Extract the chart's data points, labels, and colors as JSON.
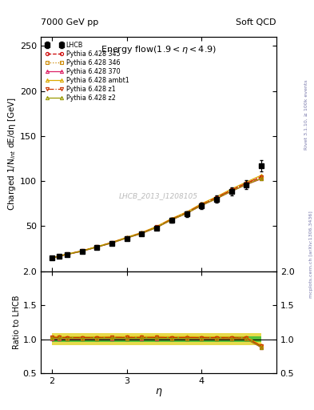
{
  "title_main": "Energy flow",
  "title_sub": "(1.9< η <4.9)",
  "header_left": "7000 GeV pp",
  "header_right": "Soft QCD",
  "ylabel_main": "Charged 1/N$_{int}$ dE/dη [GeV]",
  "ylabel_ratio": "Ratio to LHCB",
  "xlabel": "η",
  "watermark": "LHCB_2013_I1208105",
  "rivet_text": "Rivet 3.1.10, ≥ 100k events",
  "arxiv_text": "mcplots.cern.ch [arXiv:1306.3436]",
  "eta": [
    2.0,
    2.1,
    2.2,
    2.4,
    2.6,
    2.8,
    3.0,
    3.2,
    3.4,
    3.6,
    3.8,
    4.0,
    4.2,
    4.4,
    4.6,
    4.8
  ],
  "lhcb_y": [
    14.5,
    16.5,
    18.5,
    22.0,
    26.5,
    31.0,
    36.5,
    41.5,
    48.0,
    56.5,
    63.5,
    72.5,
    80.0,
    88.5,
    96.0,
    117.0
  ],
  "lhcb_yerr": [
    0.8,
    0.9,
    1.0,
    1.1,
    1.3,
    1.5,
    1.8,
    2.0,
    2.5,
    2.8,
    3.2,
    3.6,
    4.0,
    4.5,
    5.0,
    6.5
  ],
  "p345_y": [
    14.8,
    16.8,
    18.8,
    22.4,
    27.0,
    31.6,
    37.2,
    42.3,
    49.0,
    57.6,
    64.8,
    73.9,
    81.5,
    90.0,
    97.5,
    104.5
  ],
  "p346_y": [
    14.7,
    16.7,
    18.7,
    22.3,
    26.9,
    31.5,
    37.0,
    42.1,
    48.7,
    57.2,
    64.3,
    73.3,
    80.8,
    89.2,
    96.6,
    103.5
  ],
  "p370_y": [
    14.6,
    16.6,
    18.6,
    22.1,
    26.7,
    31.3,
    36.8,
    41.9,
    48.5,
    57.0,
    64.1,
    73.0,
    80.4,
    88.7,
    96.1,
    102.5
  ],
  "pambt1_y": [
    15.0,
    17.1,
    19.1,
    22.7,
    27.4,
    32.1,
    37.8,
    43.0,
    49.8,
    58.5,
    65.8,
    75.0,
    82.7,
    91.3,
    99.0,
    106.5
  ],
  "pz1_y": [
    14.9,
    16.9,
    18.9,
    22.5,
    27.1,
    31.8,
    37.4,
    42.5,
    49.2,
    57.8,
    65.0,
    74.1,
    81.7,
    90.2,
    97.7,
    105.0
  ],
  "pz2_y": [
    14.7,
    16.7,
    18.7,
    22.2,
    26.8,
    31.4,
    36.9,
    42.0,
    48.6,
    57.1,
    64.2,
    73.1,
    80.5,
    88.8,
    96.2,
    103.0
  ],
  "color_345": "#cc0000",
  "color_346": "#cc8800",
  "color_370": "#dd2266",
  "color_ambt1": "#ddaa00",
  "color_z1": "#cc3300",
  "color_z2": "#999900",
  "lhcb_color": "#000000",
  "band_green": "#33bb33",
  "band_yellow": "#ddcc00",
  "xlim": [
    1.85,
    5.0
  ],
  "xticks": [
    2,
    3,
    4
  ],
  "ylim_main": [
    0,
    260
  ],
  "ylim_ratio": [
    0.5,
    2.0
  ],
  "yticks_main": [
    50,
    100,
    150,
    200,
    250
  ],
  "yticks_ratio": [
    0.5,
    1.0,
    1.5,
    2.0
  ],
  "legend_entries": [
    "LHCB",
    "Pythia 6.428 345",
    "Pythia 6.428 346",
    "Pythia 6.428 370",
    "Pythia 6.428 ambt1",
    "Pythia 6.428 z1",
    "Pythia 6.428 z2"
  ]
}
